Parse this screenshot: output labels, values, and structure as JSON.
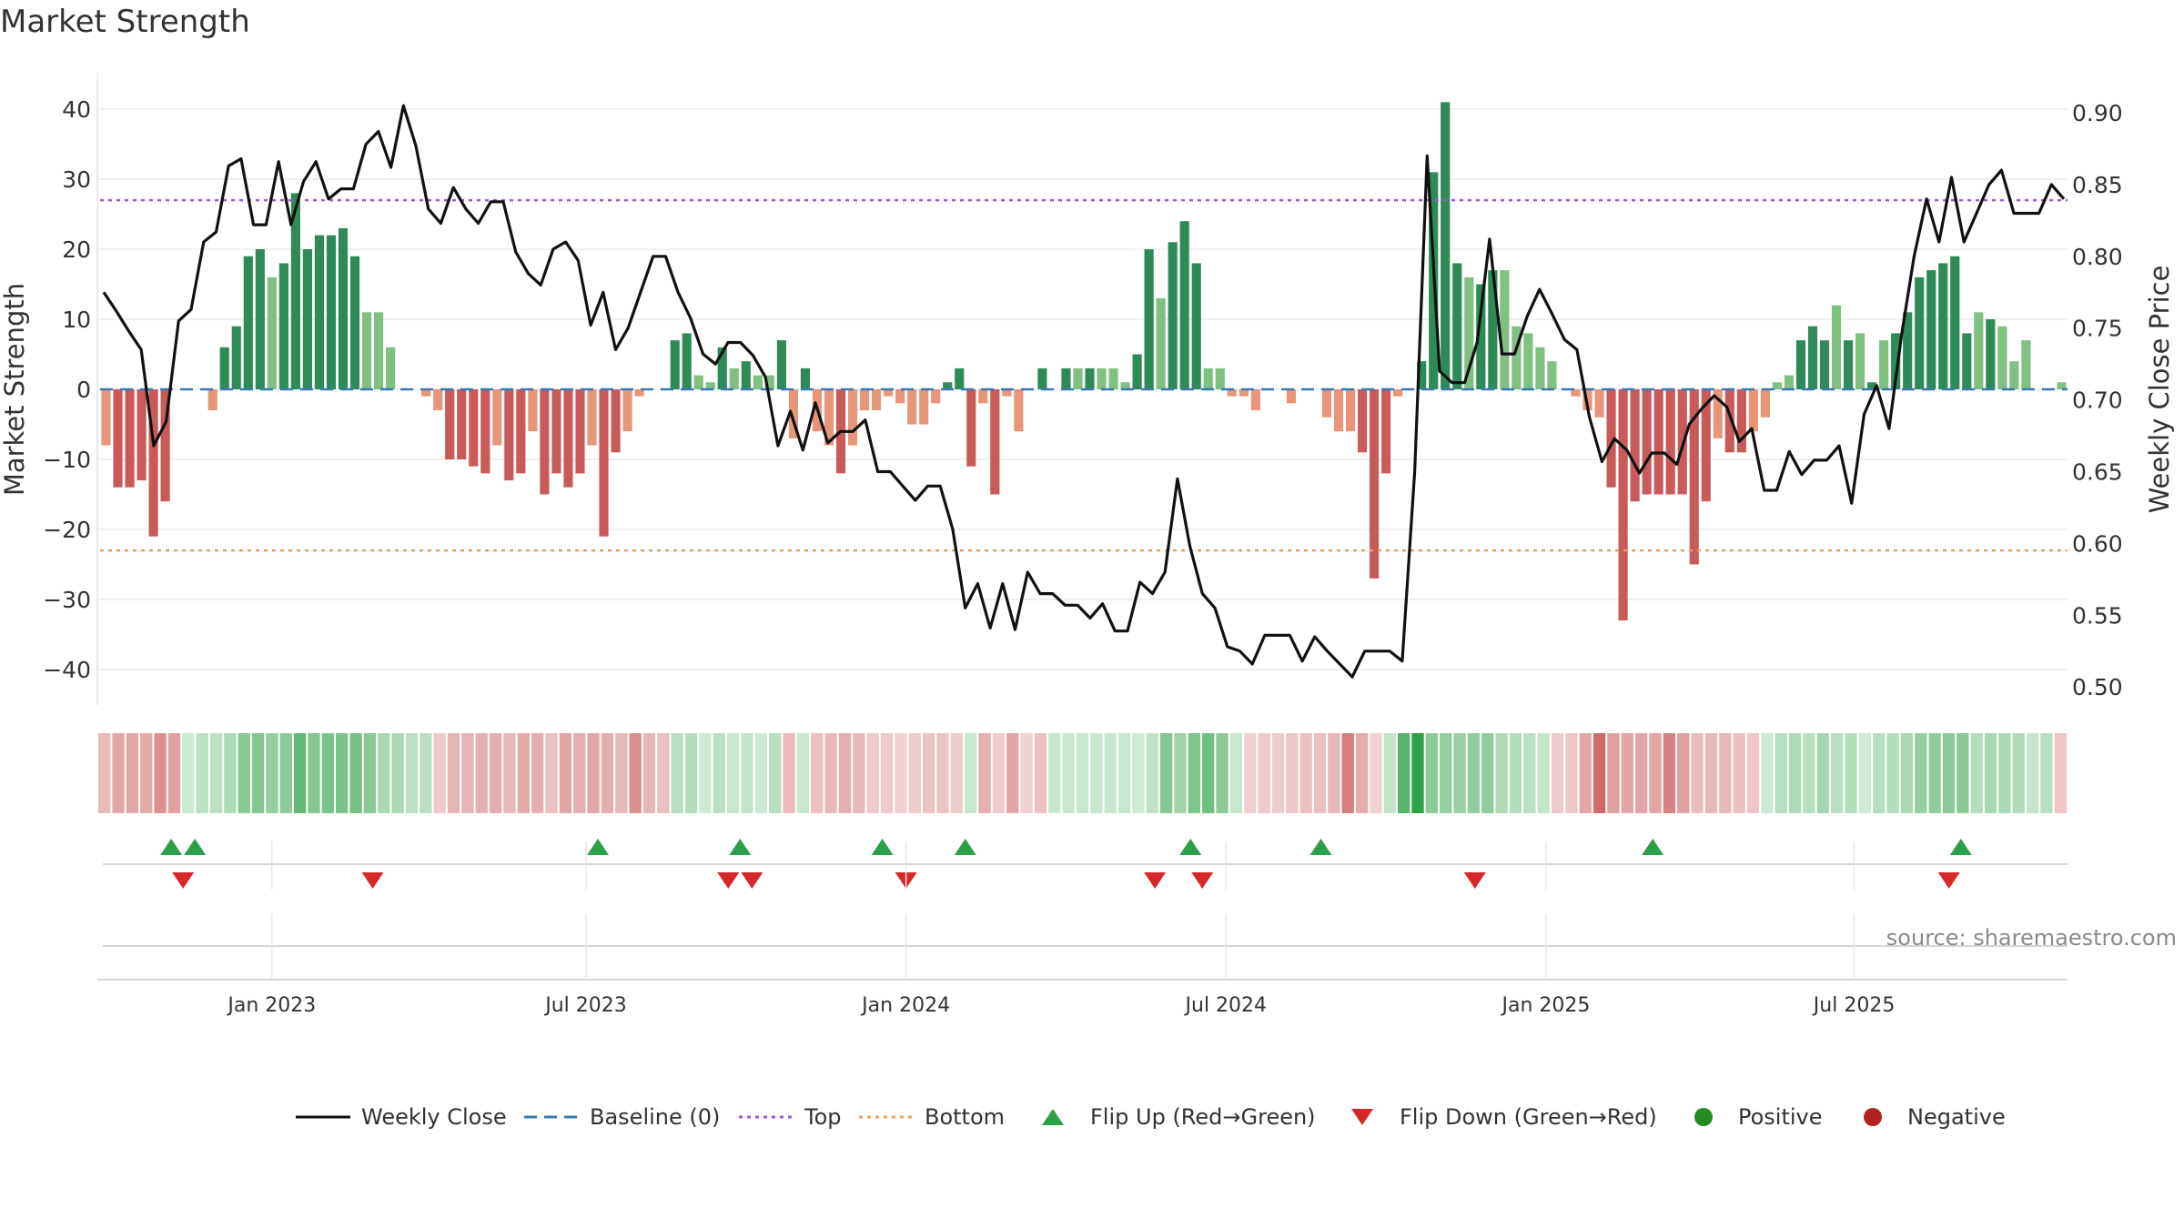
{
  "chart_data": {
    "type": "bar",
    "title": "Market Strength",
    "left_axis": {
      "label": "Market Strength",
      "range": [
        -45,
        45
      ],
      "ticks": [
        "40",
        "30",
        "20",
        "10",
        "0",
        "−10",
        "−20",
        "−30",
        "−40"
      ],
      "tick_values": [
        40,
        30,
        20,
        10,
        0,
        -10,
        -20,
        -30,
        -40
      ]
    },
    "right_axis": {
      "label": "Weekly Close Price",
      "range": [
        0.485,
        0.945
      ],
      "ticks": [
        "0.90",
        "0.85",
        "0.80",
        "0.75",
        "0.70",
        "0.65",
        "0.60",
        "0.55",
        "0.50"
      ],
      "tick_values": [
        0.9,
        0.85,
        0.8,
        0.75,
        0.7,
        0.65,
        0.6,
        0.55,
        0.5
      ]
    },
    "x_axis": {
      "ticks": [
        "Jan 2023",
        "Jul 2023",
        "Jan 2024",
        "Jul 2024",
        "Jan 2025",
        "Jul 2025"
      ],
      "tick_weeks": [
        14.5,
        41,
        68,
        95,
        122,
        148
      ]
    },
    "top_threshold": 27,
    "bottom_threshold": -23,
    "colors": {
      "strong_green": "#2e8b57",
      "light_green": "#80c080",
      "strong_red": "#c85a5a",
      "light_red": "#e8967a",
      "price": "#111111",
      "baseline": "#3a78b4",
      "top": "#9b59d0",
      "bottom": "#e8a060",
      "flip_up": "#2ca048",
      "flip_down": "#d62828",
      "positive": "#228b22",
      "negative": "#b22222"
    },
    "strength": [
      -8,
      -14,
      -14,
      -13,
      -21,
      -16,
      0,
      0,
      0,
      -3,
      6,
      9,
      19,
      20,
      16,
      18,
      28,
      20,
      22,
      22,
      23,
      19,
      11,
      11,
      6,
      0,
      0,
      -1,
      -3,
      -10,
      -10,
      -11,
      -12,
      -8,
      -13,
      -12,
      -6,
      -15,
      -12,
      -14,
      -12,
      -8,
      -21,
      -9,
      -6,
      -1,
      0,
      0,
      7,
      8,
      2,
      1,
      6,
      3,
      4,
      2,
      2,
      7,
      -7,
      3,
      -6,
      -8,
      -12,
      -8,
      -3,
      -3,
      -1,
      -2,
      -5,
      -5,
      -2,
      1,
      3,
      -11,
      -2,
      -15,
      -1,
      -6,
      0,
      3,
      0,
      3,
      3,
      3,
      3,
      3,
      1,
      5,
      20,
      13,
      21,
      24,
      18,
      3,
      3,
      -1,
      -1,
      -3,
      0,
      0,
      -2,
      0,
      0,
      -4,
      -6,
      -6,
      -9,
      -27,
      -12,
      -1,
      0,
      4,
      31,
      41,
      18,
      16,
      15,
      17,
      17,
      9,
      8,
      6,
      4,
      0,
      -1,
      -3,
      -4,
      -14,
      -33,
      -16,
      -15,
      -15,
      -15,
      -15,
      -25,
      -16,
      -7,
      -9,
      -9,
      -6,
      -4,
      1,
      2,
      7,
      9,
      7,
      12,
      7,
      8,
      1,
      7,
      8,
      11,
      16,
      17,
      18,
      19,
      8,
      11,
      10,
      9,
      4,
      7,
      0,
      0,
      1
    ],
    "shade_green": [
      0,
      0,
      0,
      0,
      0,
      0,
      0,
      0,
      0,
      0,
      1,
      1,
      1,
      1,
      0,
      1,
      1,
      0,
      1,
      1,
      1,
      0,
      0,
      0,
      0,
      0,
      0,
      0,
      0,
      0,
      0,
      0,
      0,
      0,
      0,
      0,
      0,
      0,
      0,
      0,
      0,
      0,
      0,
      0,
      0,
      0,
      0,
      0,
      1,
      1,
      0,
      0,
      1,
      0,
      1,
      0,
      0,
      1,
      0,
      1,
      0,
      0,
      0,
      0,
      0,
      0,
      0,
      0,
      0,
      0,
      0,
      1,
      1,
      0,
      0,
      0,
      0,
      0,
      0,
      1,
      0,
      1,
      0,
      1,
      0,
      0,
      0,
      1,
      1,
      0,
      1,
      1,
      0,
      0,
      0,
      0,
      0,
      0,
      0,
      0,
      0,
      0,
      0,
      0,
      0,
      0,
      0,
      0,
      0,
      0,
      1,
      1,
      1,
      0,
      0,
      0,
      1,
      1,
      0,
      0,
      0,
      0,
      0,
      0,
      0,
      0,
      0,
      0,
      0,
      0,
      0,
      0,
      0,
      0,
      0,
      0,
      0,
      0,
      0,
      0,
      0,
      0,
      0,
      1,
      1,
      1,
      0,
      1,
      0,
      1,
      0,
      1,
      1,
      1,
      1,
      1,
      1,
      1,
      0,
      1,
      0,
      0,
      0,
      1,
      0,
      0,
      1
    ],
    "price": [
      0.775,
      0.762,
      0.748,
      0.735,
      0.668,
      0.685,
      0.755,
      0.763,
      0.81,
      0.817,
      0.863,
      0.868,
      0.822,
      0.822,
      0.866,
      0.822,
      0.852,
      0.866,
      0.84,
      0.847,
      0.847,
      0.878,
      0.887,
      0.862,
      0.905,
      0.877,
      0.833,
      0.823,
      0.848,
      0.833,
      0.823,
      0.838,
      0.838,
      0.803,
      0.788,
      0.78,
      0.805,
      0.81,
      0.797,
      0.752,
      0.775,
      0.735,
      0.75,
      0.775,
      0.8,
      0.8,
      0.775,
      0.757,
      0.732,
      0.725,
      0.74,
      0.74,
      0.731,
      0.716,
      0.668,
      0.692,
      0.665,
      0.698,
      0.67,
      0.678,
      0.678,
      0.686,
      0.65,
      0.65,
      0.64,
      0.63,
      0.64,
      0.64,
      0.61,
      0.555,
      0.572,
      0.541,
      0.572,
      0.54,
      0.58,
      0.565,
      0.565,
      0.557,
      0.557,
      0.548,
      0.558,
      0.539,
      0.539,
      0.573,
      0.565,
      0.58,
      0.645,
      0.598,
      0.565,
      0.555,
      0.528,
      0.525,
      0.516,
      0.536,
      0.536,
      0.536,
      0.518,
      0.535,
      0.525,
      0.516,
      0.507,
      0.525,
      0.525,
      0.525,
      0.518,
      0.65,
      0.87,
      0.72,
      0.712,
      0.712,
      0.74,
      0.812,
      0.732,
      0.732,
      0.758,
      0.777,
      0.76,
      0.742,
      0.735,
      0.688,
      0.657,
      0.673,
      0.665,
      0.649,
      0.663,
      0.663,
      0.655,
      0.683,
      0.694,
      0.703,
      0.695,
      0.671,
      0.68,
      0.637,
      0.637,
      0.664,
      0.648,
      0.658,
      0.658,
      0.668,
      0.628,
      0.69,
      0.71,
      0.68,
      0.745,
      0.8,
      0.84,
      0.81,
      0.855,
      0.81,
      0.83,
      0.85,
      0.86,
      0.83,
      0.83,
      0.83,
      0.85,
      0.84
    ],
    "heat_strip": [
      -8,
      -14,
      -14,
      -13,
      -21,
      -16,
      2,
      6,
      6,
      9,
      19,
      20,
      16,
      18,
      28,
      20,
      22,
      22,
      23,
      19,
      11,
      11,
      6,
      6,
      -3,
      -10,
      -10,
      -11,
      -12,
      -8,
      -13,
      -12,
      -6,
      -15,
      -12,
      -14,
      -12,
      -8,
      -21,
      -9,
      -6,
      7,
      8,
      2,
      6,
      3,
      4,
      2,
      7,
      -7,
      3,
      -6,
      -8,
      -12,
      -8,
      -3,
      -3,
      -1,
      -2,
      -5,
      -5,
      -2,
      3,
      -11,
      -2,
      -15,
      -1,
      -6,
      3,
      3,
      3,
      3,
      3,
      3,
      1,
      5,
      20,
      13,
      21,
      24,
      18,
      3,
      -1,
      -3,
      -2,
      -4,
      -6,
      -6,
      -9,
      -27,
      -12,
      -1,
      4,
      31,
      41,
      18,
      16,
      15,
      17,
      17,
      9,
      8,
      6,
      4,
      -3,
      -4,
      -14,
      -33,
      -16,
      -15,
      -15,
      -15,
      -25,
      -16,
      -7,
      -9,
      -9,
      -6,
      -4,
      2,
      7,
      9,
      7,
      12,
      7,
      8,
      1,
      7,
      8,
      11,
      16,
      17,
      18,
      19,
      8,
      11,
      10,
      9,
      4,
      7,
      -4
    ],
    "flip_up_weeks": [
      6,
      8,
      42,
      54,
      66,
      73,
      92,
      103,
      131,
      157
    ],
    "flip_down_weeks": [
      7,
      23,
      53,
      55,
      68,
      89,
      93,
      116,
      156
    ],
    "series": [
      {
        "name": "Weekly Close"
      },
      {
        "name": "Baseline (0)"
      },
      {
        "name": "Top"
      },
      {
        "name": "Bottom"
      },
      {
        "name": "Flip Up (Red→Green)"
      },
      {
        "name": "Flip Down (Green→Red)"
      },
      {
        "name": "Positive"
      },
      {
        "name": "Negative"
      }
    ]
  },
  "source_note": "source: sharemaestro.com"
}
